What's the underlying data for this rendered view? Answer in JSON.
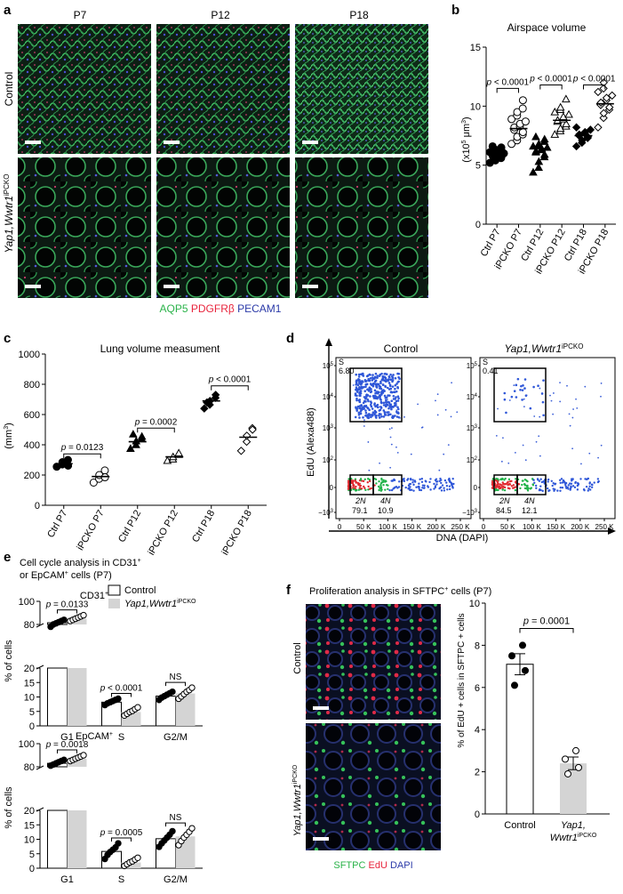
{
  "panel_letters": {
    "a": "a",
    "b": "b",
    "c": "c",
    "d": "d",
    "e": "e",
    "f": "f"
  },
  "panel_a": {
    "columns": [
      "P7",
      "P12",
      "P18"
    ],
    "rows": [
      "Control",
      "Yap1,Wwtr1"
    ],
    "row2_sup": "iPCKO",
    "stain_legend": [
      {
        "label": "AQP5",
        "color": "#2bb34a"
      },
      {
        "label": "PDGFRβ",
        "color": "#e8243c"
      },
      {
        "label": "PECAM1",
        "color": "#2b3aa8"
      }
    ]
  },
  "panel_d": {
    "titles": [
      "Control",
      "Yap1,Wwtr1"
    ],
    "title_sup": "iPCKO",
    "ylabel": "EdU (Alexa488)",
    "xlabel": "DNA (DAPI)",
    "yticks": [
      "10",
      "10",
      "10",
      "10",
      "0",
      "−10"
    ],
    "ytick_exp": [
      "5",
      "4",
      "3",
      "2",
      "",
      "3"
    ],
    "xticks": [
      "0",
      "50 K",
      "100 K",
      "150 K",
      "200 K",
      "250 K"
    ],
    "gates": [
      {
        "S_label": "S",
        "S_val": "6.80",
        "g1_label": "2N",
        "g1_val": "79.1",
        "g2_label": "4N",
        "g2_val": "10.9"
      },
      {
        "S_label": "S",
        "S_val": "0.41",
        "g1_label": "2N",
        "g1_val": "84.5",
        "g2_label": "4N",
        "g2_val": "12.1"
      }
    ]
  },
  "panel_e": {
    "title_line1": "Cell cycle analysis in CD31",
    "title_line1_sup": "+",
    "title_line2_a": "or EpCAM",
    "title_line2_sup": "+",
    "title_line2_b": " cells (P7)",
    "legend": {
      "control": "Control",
      "mutant": "Yap1,Wwtr1",
      "mutant_sup": "iPCKO"
    }
  },
  "panel_f": {
    "title": "Proliferation analysis in SFTPC",
    "title_sup": "+",
    "title_end": " cells (P7)",
    "rows": [
      "Control",
      "Yap1,Wwtr1"
    ],
    "row2_sup": "iPCKO",
    "stain_legend": [
      {
        "label": "SFTPC",
        "color": "#2bb34a"
      },
      {
        "label": "EdU",
        "color": "#e8243c"
      },
      {
        "label": "DAPI",
        "color": "#2b3aa8"
      }
    ]
  },
  "colors": {
    "control_bar": "#ffffff",
    "mutant_bar": "#d4d4d4"
  },
  "chart_data": [
    {
      "id": "b",
      "type": "scatter",
      "title": "Airspace volume",
      "ylabel": "(x10",
      "ylabel_sup": "5",
      "ylabel_unit": " μm",
      "ylabel_unit_sup": "3",
      "ylabel_end": ")",
      "ylim": [
        0,
        15
      ],
      "yticks": [
        0,
        5,
        10,
        15
      ],
      "categories": [
        "Ctrl P7",
        "iPCKO P7",
        "Ctrl P12",
        "iPCKO P12",
        "Ctrl P18",
        "iPCKO P18"
      ],
      "markers": [
        "circle-filled",
        "circle-open",
        "triangle-filled",
        "triangle-open",
        "diamond-filled",
        "diamond-open"
      ],
      "means": [
        5.9,
        8.1,
        6.4,
        8.8,
        7.5,
        10.2
      ],
      "pvalues": [
        {
          "from": 0,
          "to": 1,
          "label": "p < 0.0001"
        },
        {
          "from": 2,
          "to": 3,
          "label": "p < 0.0001"
        },
        {
          "from": 4,
          "to": 5,
          "label": "p < 0.0001"
        }
      ],
      "points": [
        [
          5.2,
          5.4,
          5.5,
          5.6,
          5.7,
          5.8,
          5.9,
          5.9,
          6.0,
          6.0,
          6.1,
          6.2,
          6.3,
          6.4,
          6.5,
          6.6
        ],
        [
          6.8,
          7.1,
          7.4,
          7.6,
          7.8,
          8.0,
          8.2,
          8.3,
          8.5,
          8.7,
          8.9,
          9.2,
          9.5,
          9.8,
          10.5
        ],
        [
          4.4,
          4.8,
          5.3,
          5.7,
          5.9,
          6.1,
          6.2,
          6.3,
          6.4,
          6.5,
          6.6,
          6.7,
          6.8,
          7.0,
          7.2,
          7.4
        ],
        [
          7.6,
          7.9,
          8.1,
          8.3,
          8.5,
          8.7,
          8.8,
          8.9,
          9.1,
          9.3,
          9.5,
          9.7,
          9.9,
          10.6
        ],
        [
          6.6,
          6.9,
          7.1,
          7.3,
          7.4,
          7.5,
          7.6,
          7.7,
          7.8,
          8.0,
          8.2
        ],
        [
          8.2,
          9.0,
          9.4,
          9.7,
          9.9,
          10.1,
          10.3,
          10.5,
          10.7,
          10.9,
          11.2,
          11.5,
          12.0
        ]
      ]
    },
    {
      "id": "c",
      "type": "scatter",
      "title": "Lung volume measument",
      "ylabel": "(mm",
      "ylabel_sup": "3",
      "ylabel_end": ")",
      "ylim": [
        0,
        1000
      ],
      "yticks": [
        0,
        200,
        400,
        600,
        800,
        1000
      ],
      "categories": [
        "Ctrl P7",
        "iPCKO P7",
        "Ctrl P12",
        "iPCKO P12",
        "Ctrl P18",
        "iPCKO P18"
      ],
      "markers": [
        "circle-filled",
        "circle-open",
        "triangle-filled",
        "triangle-open",
        "diamond-filled",
        "diamond-open"
      ],
      "means": [
        275,
        190,
        420,
        320,
        690,
        450
      ],
      "pvalues": [
        {
          "from": 0,
          "to": 1,
          "label": "p = 0.0123"
        },
        {
          "from": 2,
          "to": 3,
          "label": "p = 0.0002"
        },
        {
          "from": 4,
          "to": 5,
          "label": "p < 0.0001"
        }
      ],
      "points": [
        [
          255,
          270,
          285,
          300,
          262
        ],
        [
          150,
          175,
          200,
          230,
          185
        ],
        [
          375,
          400,
          425,
          440,
          455,
          470
        ],
        [
          295,
          305,
          320,
          335,
          345
        ],
        [
          640,
          665,
          690,
          710,
          730,
          680
        ],
        [
          360,
          420,
          460,
          510,
          500
        ]
      ]
    },
    {
      "id": "e-cd31",
      "type": "bar",
      "subtitle": "CD31",
      "subtitle_sup": "+",
      "ylabel": "% of cells",
      "yticks": [
        0,
        5,
        10,
        15,
        20,
        80,
        100
      ],
      "categories": [
        "G1",
        "S",
        "G2/M"
      ],
      "series": [
        {
          "values": [
            81.5,
            8.2,
            10.3
          ],
          "points": [
            [
              78,
              80,
              81,
              82,
              83,
              84
            ],
            [
              7.2,
              7.8,
              8.2,
              8.6,
              9.0,
              9.4
            ],
            [
              9.0,
              9.8,
              10.3,
              10.8,
              11.3,
              11.8
            ]
          ]
        },
        {
          "values": [
            85.0,
            4.8,
            11.2
          ],
          "points": [
            [
              83,
              84,
              85,
              86,
              87,
              88
            ],
            [
              3.6,
              4.2,
              4.8,
              5.2,
              5.8,
              6.4
            ],
            [
              9.4,
              10.2,
              11.0,
              11.8,
              12.4,
              13.2
            ]
          ]
        }
      ],
      "pvalues": [
        {
          "label": "p = 0.0133"
        },
        {
          "label": "p < 0.0001"
        },
        {
          "label": "NS"
        }
      ]
    },
    {
      "id": "e-epcam",
      "type": "bar",
      "subtitle": "EpCAM",
      "subtitle_sup": "+",
      "ylabel": "% of cells",
      "yticks": [
        0,
        5,
        10,
        15,
        20,
        80,
        100
      ],
      "categories": [
        "G1",
        "S",
        "G2/M"
      ],
      "series": [
        {
          "values": [
            83.0,
            5.8,
            10.2
          ],
          "points": [
            [
              81,
              82,
              83,
              84,
              85,
              86
            ],
            [
              3.2,
              4.6,
              5.6,
              6.4,
              7.2,
              8.6
            ],
            [
              7.4,
              8.6,
              9.6,
              10.6,
              11.6,
              12.8
            ]
          ]
        },
        {
          "values": [
            87.0,
            2.0,
            11.0
          ],
          "points": [
            [
              85,
              86,
              87,
              88,
              89,
              90
            ],
            [
              0.8,
              1.4,
              2.0,
              2.4,
              3.0,
              3.6
            ],
            [
              8.0,
              9.4,
              10.6,
              11.6,
              12.6,
              13.8
            ]
          ]
        }
      ],
      "pvalues": [
        {
          "label": "p = 0.0018"
        },
        {
          "label": "p = 0.0005"
        },
        {
          "label": "NS"
        }
      ]
    },
    {
      "id": "f",
      "type": "bar",
      "ylabel": "% of EdU + cells in SFTPC + cells",
      "ylim": [
        0,
        10
      ],
      "yticks": [
        0,
        2,
        4,
        6,
        8,
        10
      ],
      "categories": [
        "Control",
        "Yap1,"
      ],
      "category2_line2": "Wwtr1",
      "category2_sup": "iPCKO",
      "values": [
        7.1,
        2.4
      ],
      "errors": [
        0.5,
        0.3
      ],
      "points": [
        [
          6.1,
          6.8,
          7.5,
          8.0
        ],
        [
          1.9,
          2.2,
          2.6,
          3.0
        ]
      ],
      "pvalue": "p = 0.0001"
    }
  ]
}
